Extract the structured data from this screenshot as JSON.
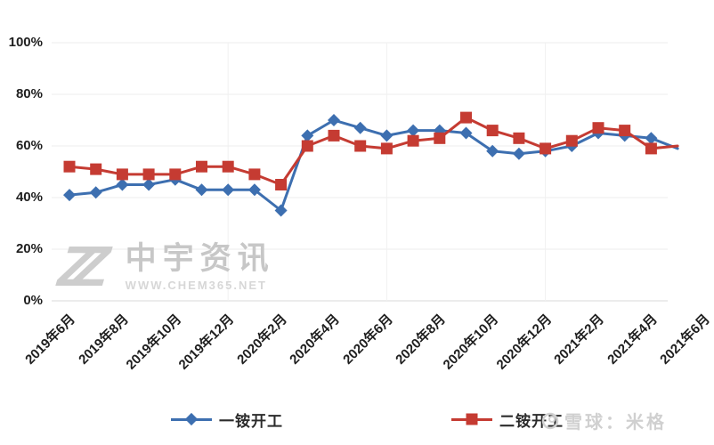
{
  "chart_data": {
    "type": "line",
    "title": "",
    "months": [
      "2019年6月",
      "2019年7月",
      "2019年8月",
      "2019年9月",
      "2019年10月",
      "2019年11月",
      "2019年12月",
      "2020年1月",
      "2020年2月",
      "2020年3月",
      "2020年4月",
      "2020年5月",
      "2020年6月",
      "2020年7月",
      "2020年8月",
      "2020年9月",
      "2020年10月",
      "2020年11月",
      "2020年12月",
      "2021年1月",
      "2021年2月",
      "2021年3月",
      "2021年4月",
      "2021年5月"
    ],
    "series": [
      {
        "name": "一铵开工",
        "color": "#3d6fb0",
        "marker": "diamond",
        "values": [
          41,
          42,
          45,
          45,
          47,
          43,
          43,
          43,
          35,
          64,
          70,
          67,
          64,
          66,
          66,
          65,
          58,
          57,
          58,
          60,
          65,
          64,
          63,
          59
        ]
      },
      {
        "name": "二铵开工",
        "color": "#c53b32",
        "marker": "square",
        "values": [
          52,
          51,
          49,
          49,
          49,
          52,
          52,
          49,
          45,
          60,
          64,
          60,
          59,
          62,
          63,
          71,
          66,
          63,
          59,
          62,
          67,
          66,
          59,
          60
        ]
      }
    ],
    "x_tick_labels": [
      "2019年6月",
      "2019年8月",
      "2019年10月",
      "2019年12月",
      "2020年2月",
      "2020年4月",
      "2020年6月",
      "2020年8月",
      "2020年10月",
      "2020年12月",
      "2021年2月",
      "2021年4月",
      "2021年6月"
    ],
    "y_ticks": [
      0,
      20,
      40,
      60,
      80,
      100
    ],
    "y_tick_labels": [
      "0%",
      "20%",
      "40%",
      "60%",
      "80%",
      "100%"
    ],
    "ylim": [
      0,
      100
    ],
    "grid": true,
    "legend_position": "bottom"
  },
  "legend": [
    {
      "label": "一铵开工",
      "color": "#3d6fb0",
      "marker": "diamond"
    },
    {
      "label": "二铵开工",
      "color": "#c53b32",
      "marker": "square"
    }
  ],
  "watermark": {
    "logo_text": "ZZ",
    "name": "中宇资讯",
    "url": "WWW.CHEM365.NET"
  },
  "footer_watermark": {
    "text": "雪球：米格"
  },
  "colors": {
    "grid_line": "#ececec",
    "axis_line": "#d9d9d9",
    "tick_text": "#1f1f1f",
    "watermark_gray": "#cdcdcd"
  }
}
